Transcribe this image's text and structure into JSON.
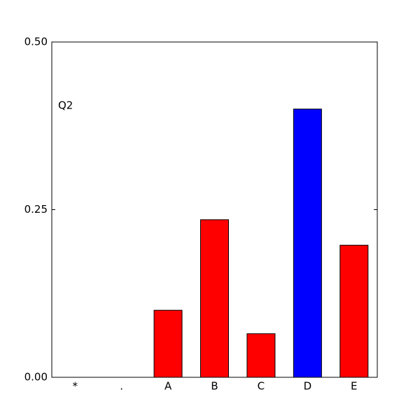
{
  "chart_data": {
    "type": "bar",
    "annotation": "Q2",
    "categories": [
      "*",
      ".",
      "A",
      "B",
      "C",
      "D",
      "E"
    ],
    "values": [
      0,
      0,
      0.1,
      0.235,
      0.065,
      0.4,
      0.197
    ],
    "colors": [
      "#ff0000",
      "#ff0000",
      "#ff0000",
      "#ff0000",
      "#ff0000",
      "#0000ff",
      "#ff0000"
    ],
    "ylim": [
      0,
      0.5
    ],
    "yticks": [
      {
        "value": 0,
        "label": "0.00"
      },
      {
        "value": 0.25,
        "label": "0.25"
      },
      {
        "value": 0.5,
        "label": "0.50"
      }
    ],
    "grid": false
  }
}
